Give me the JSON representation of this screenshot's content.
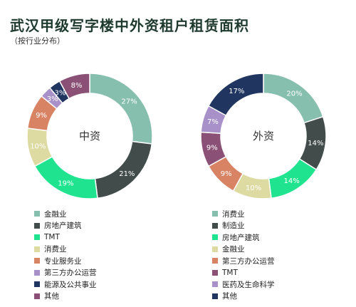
{
  "title": "武汉甲级写字楼中外资租户租赁面积",
  "subtitle": "（按行业分布）",
  "chart_data": [
    {
      "type": "pie",
      "center_label": "中资",
      "categories": [
        "金融业",
        "房地产建筑",
        "TMT",
        "消费业",
        "专业服务业",
        "第三方办公运营",
        "能源及公共事业",
        "其他"
      ],
      "values": [
        27,
        21,
        19,
        10,
        9,
        3,
        3,
        8
      ],
      "labels": [
        "27%",
        "21%",
        "19%",
        "10%",
        "9%",
        "3%",
        "3%",
        "8%"
      ],
      "colors": [
        "#86bfad",
        "#424d4b",
        "#1fe38f",
        "#dedba2",
        "#d98365",
        "#a791c8",
        "#203660",
        "#8a5075"
      ],
      "legend_placement": "bottom"
    },
    {
      "type": "pie",
      "center_label": "外资",
      "categories": [
        "消费业",
        "制造业",
        "房地产建筑",
        "金融业",
        "第三方办公运营",
        "TMT",
        "医药及生命科学",
        "其他"
      ],
      "values": [
        20,
        14,
        14,
        10,
        9,
        9,
        7,
        17
      ],
      "labels": [
        "20%",
        "14%",
        "14%",
        "10%",
        "9%",
        "9%",
        "7%",
        "17%"
      ],
      "colors": [
        "#86bfad",
        "#424d4b",
        "#1fe38f",
        "#dedba2",
        "#d98365",
        "#8a5075",
        "#a791c8",
        "#203660"
      ],
      "legend_placement": "bottom"
    }
  ]
}
